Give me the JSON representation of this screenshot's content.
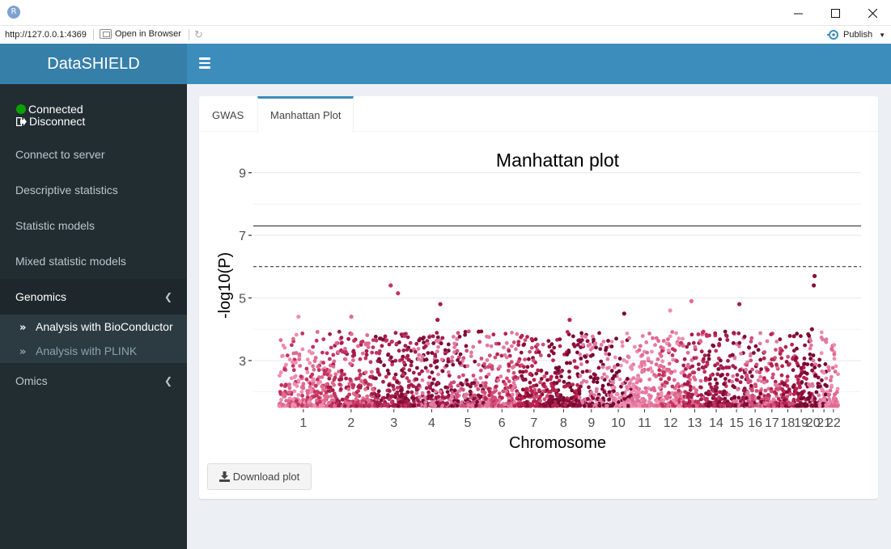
{
  "window": {
    "app_icon_letter": "R",
    "url": "http://127.0.0.1:4369",
    "open_in_browser": "Open in Browser",
    "publish_label": "Publish"
  },
  "sidebar": {
    "brand": "DataSHIELD",
    "status_connected": "Connected",
    "status_disconnect": "Disconnect",
    "items": [
      {
        "label": "Connect to server"
      },
      {
        "label": "Descriptive statistics"
      },
      {
        "label": "Statistic models"
      },
      {
        "label": "Mixed statistic models"
      },
      {
        "label": "Genomics"
      },
      {
        "label": "Omics"
      }
    ],
    "genomics_sub": [
      {
        "label": "Analysis with BioConductor",
        "active": true
      },
      {
        "label": "Analysis with PLINK",
        "active": false
      }
    ]
  },
  "tabs": [
    {
      "label": "GWAS"
    },
    {
      "label": "Manhattan Plot"
    }
  ],
  "download_label": "Download plot",
  "colors": {
    "header": "#3c8dbc",
    "brand": "#367fa9",
    "sidebar": "#222d32",
    "chromosome_palette": [
      "#f08cb0",
      "#e0698f",
      "#c2335f",
      "#a31c4a",
      "#7e0d35",
      "#e07aa0",
      "#d04d79",
      "#b8234d",
      "#8c0e3a",
      "#730a30",
      "#e27aa0"
    ]
  },
  "chart_data": {
    "type": "scatter",
    "title": "Manhattan plot",
    "xlabel": "Chromosome",
    "ylabel": "-log10(P)",
    "categories": [
      "1",
      "2",
      "3",
      "4",
      "5",
      "6",
      "7",
      "8",
      "9",
      "10",
      "11",
      "12",
      "13",
      "14",
      "15",
      "16",
      "17",
      "18",
      "19",
      "20",
      "21",
      "22"
    ],
    "yticks": [
      3,
      5,
      7,
      9
    ],
    "ylim": [
      1.5,
      9.3
    ],
    "genome_wide_line": 7.3,
    "suggestive_line": 6.0,
    "grid": true,
    "top_hits": [
      {
        "chromosome": "1",
        "y": 4.4
      },
      {
        "chromosome": "2",
        "y": 4.4
      },
      {
        "chromosome": "3",
        "y": 5.4
      },
      {
        "chromosome": "3",
        "y": 5.15
      },
      {
        "chromosome": "4",
        "y": 4.8
      },
      {
        "chromosome": "4",
        "y": 4.3
      },
      {
        "chromosome": "8",
        "y": 4.3
      },
      {
        "chromosome": "10",
        "y": 4.5
      },
      {
        "chromosome": "12",
        "y": 4.6
      },
      {
        "chromosome": "13",
        "y": 4.9
      },
      {
        "chromosome": "15",
        "y": 4.8
      },
      {
        "chromosome": "20",
        "y": 5.7
      },
      {
        "chromosome": "20",
        "y": 5.4
      },
      {
        "chromosome": "20",
        "y": 4.0
      }
    ]
  }
}
